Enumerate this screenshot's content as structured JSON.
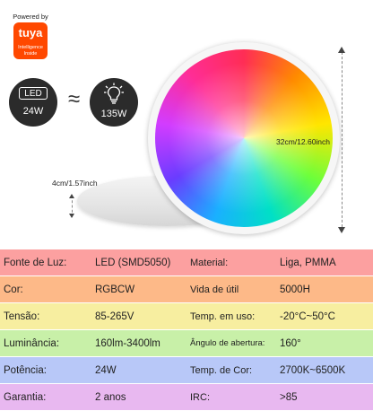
{
  "badge": {
    "powered_by": "Powered by",
    "brand": "tuya",
    "subtitle_line1": "Intelligence",
    "subtitle_line2": "Inside"
  },
  "comparison": {
    "led_label": "LED",
    "led_watt": "24W",
    "approx_symbol": "≈",
    "bulb_watt": "135W"
  },
  "dimensions": {
    "diameter": "32cm/12.60inch",
    "height": "4cm/1.57inch"
  },
  "colors": {
    "row_colors": [
      "#fca0a0",
      "#fdb988",
      "#f7eea0",
      "#c8f0a8",
      "#b8c8f8",
      "#e8b8f0"
    ]
  },
  "specs": [
    {
      "label1": "Fonte de Luz:",
      "value1": "LED (SMD5050)",
      "label2": "Material:",
      "value2": "Liga, PMMA"
    },
    {
      "label1": "Cor:",
      "value1": "RGBCW",
      "label2": "Vida de útil",
      "value2": "5000H"
    },
    {
      "label1": "Tensão:",
      "value1": "85-265V",
      "label2": "Temp. em uso:",
      "value2": "-20°C~50°C"
    },
    {
      "label1": "Luminância:",
      "value1": "160lm-3400lm",
      "label2": "Ângulo de abertura:",
      "value2": "160°"
    },
    {
      "label1": "Potência:",
      "value1": "24W",
      "label2": "Temp. de Cor:",
      "value2": "2700K~6500K"
    },
    {
      "label1": "Garantia:",
      "value1": "2 anos",
      "label2": "IRC:",
      "value2": ">85"
    }
  ]
}
